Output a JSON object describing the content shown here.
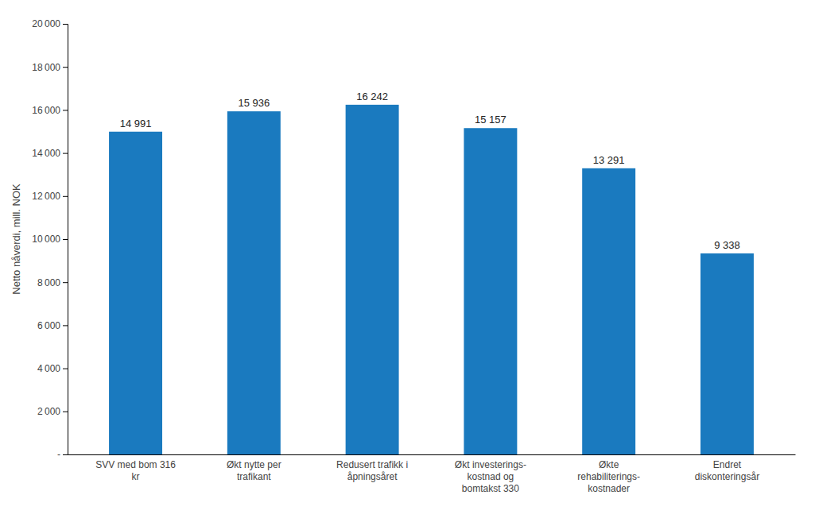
{
  "chart_data": {
    "type": "bar",
    "categories": [
      "SVV med bom 316\nkr",
      "Økt nytte per\ntrafikant",
      "Redusert trafikk i\nåpningsåret",
      "Økt investerings-\nkostnad og\nbomtakst 330",
      "Økte\nrehabiliterings-\nkostnader",
      "Endret\ndiskonteringsår"
    ],
    "values": [
      14991,
      15936,
      16242,
      15157,
      13291,
      9338
    ],
    "value_labels": [
      "14 991",
      "15 936",
      "16 242",
      "15 157",
      "13 291",
      "9 338"
    ],
    "data_labels": true,
    "color": "#1a7abf",
    "ylabel": "Netto nåverdi, mill. NOK",
    "ylim": [
      0,
      20000
    ],
    "yticks": [
      {
        "value": 0,
        "label": "-"
      },
      {
        "value": 2000,
        "label": "2 000"
      },
      {
        "value": 4000,
        "label": "4 000"
      },
      {
        "value": 6000,
        "label": "6 000"
      },
      {
        "value": 8000,
        "label": "8 000"
      },
      {
        "value": 10000,
        "label": "10 000"
      },
      {
        "value": 12000,
        "label": "12 000"
      },
      {
        "value": 14000,
        "label": "14 000"
      },
      {
        "value": 16000,
        "label": "16 000"
      },
      {
        "value": 18000,
        "label": "18 000"
      },
      {
        "value": 20000,
        "label": "20 000"
      }
    ],
    "grid": false
  }
}
